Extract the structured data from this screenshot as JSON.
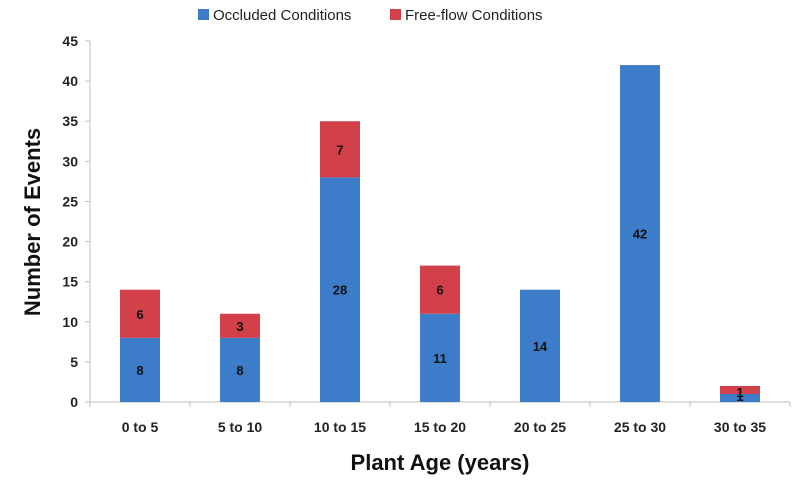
{
  "chart_data": {
    "type": "bar",
    "stacked": true,
    "categories": [
      "0 to 5",
      "5 to 10",
      "10 to 15",
      "15 to 20",
      "20 to 25",
      "25 to 30",
      "30 to 35"
    ],
    "series": [
      {
        "name": "Occluded Conditions",
        "color": "#3d7cc9",
        "values": [
          8,
          8,
          28,
          11,
          14,
          42,
          1
        ],
        "labels": [
          "8",
          "8",
          "28",
          "11",
          "14",
          "42",
          "1"
        ]
      },
      {
        "name": "Free-flow Conditions",
        "color": "#d2404a",
        "values": [
          6,
          3,
          7,
          6,
          0,
          0,
          1
        ],
        "labels": [
          "6",
          "3",
          "7",
          "6",
          "",
          "",
          "1"
        ]
      }
    ],
    "title": "",
    "xlabel": "Plant Age (years)",
    "ylabel": "Number of Events",
    "ylim": [
      0,
      45
    ],
    "yticks": [
      "0",
      "5",
      "10",
      "15",
      "20",
      "25",
      "30",
      "35",
      "40",
      "45"
    ],
    "grid": false,
    "legend_position": "top"
  }
}
